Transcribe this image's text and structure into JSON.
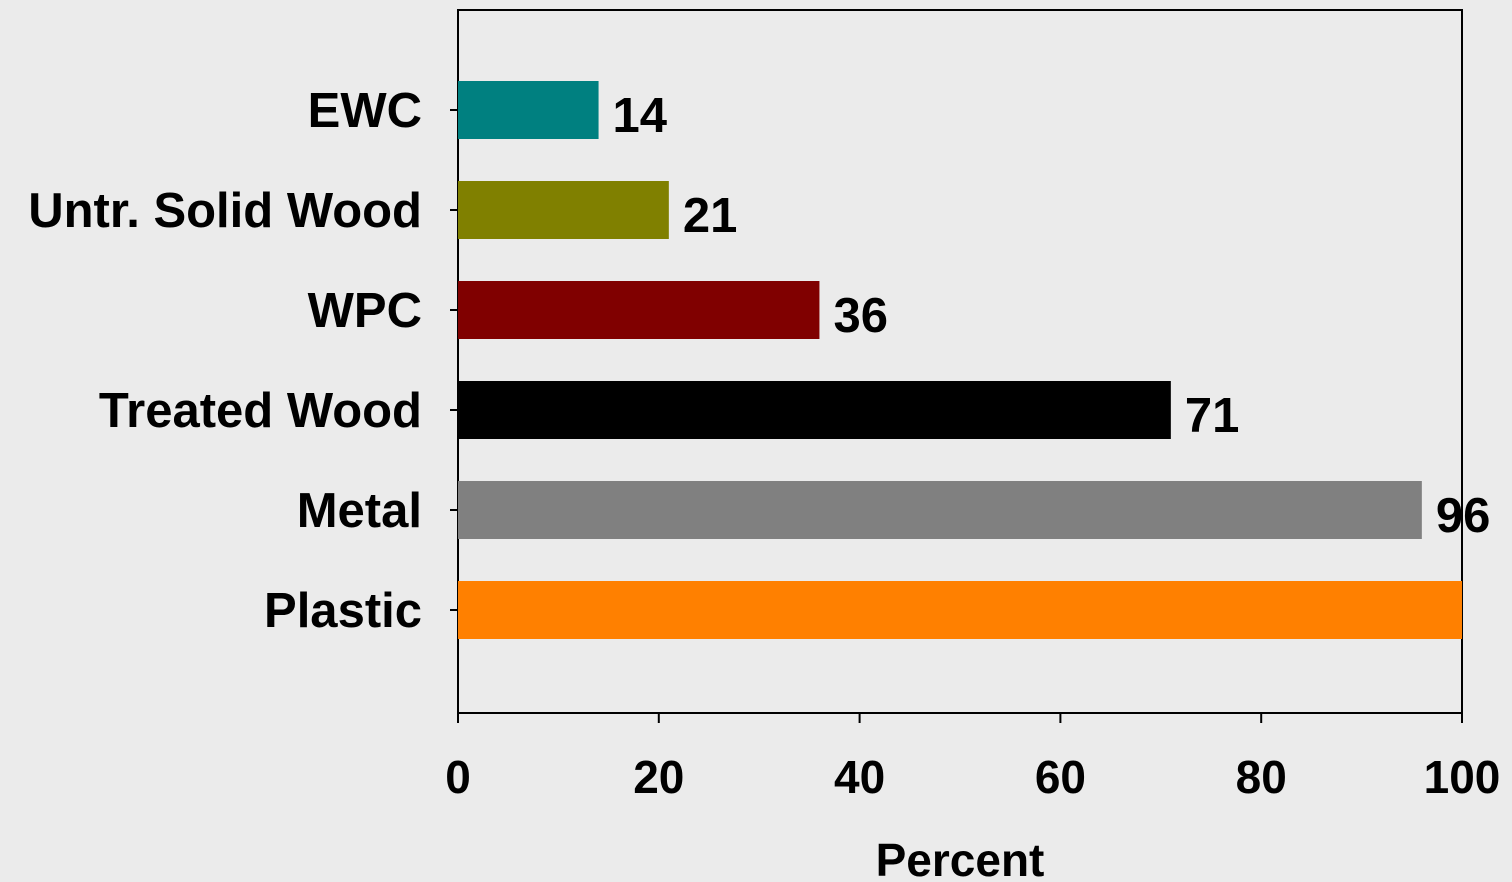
{
  "chart_data": {
    "type": "bar",
    "orientation": "horizontal",
    "categories": [
      "EWC",
      "Untr. Solid Wood",
      "WPC",
      "Treated Wood",
      "Metal",
      "Plastic"
    ],
    "values": [
      14,
      21,
      36,
      71,
      96,
      100
    ],
    "value_labels": [
      "14",
      "21",
      "36",
      "71",
      "96",
      ""
    ],
    "bar_colors": [
      "#008080",
      "#808000",
      "#800000",
      "#000000",
      "#808080",
      "#ff8000"
    ],
    "xlabel": "Percent",
    "ylabel": "",
    "xlim": [
      0,
      100
    ],
    "x_ticks": [
      "0",
      "20",
      "40",
      "60",
      "80",
      "100"
    ],
    "grid": false,
    "legend": "none"
  }
}
